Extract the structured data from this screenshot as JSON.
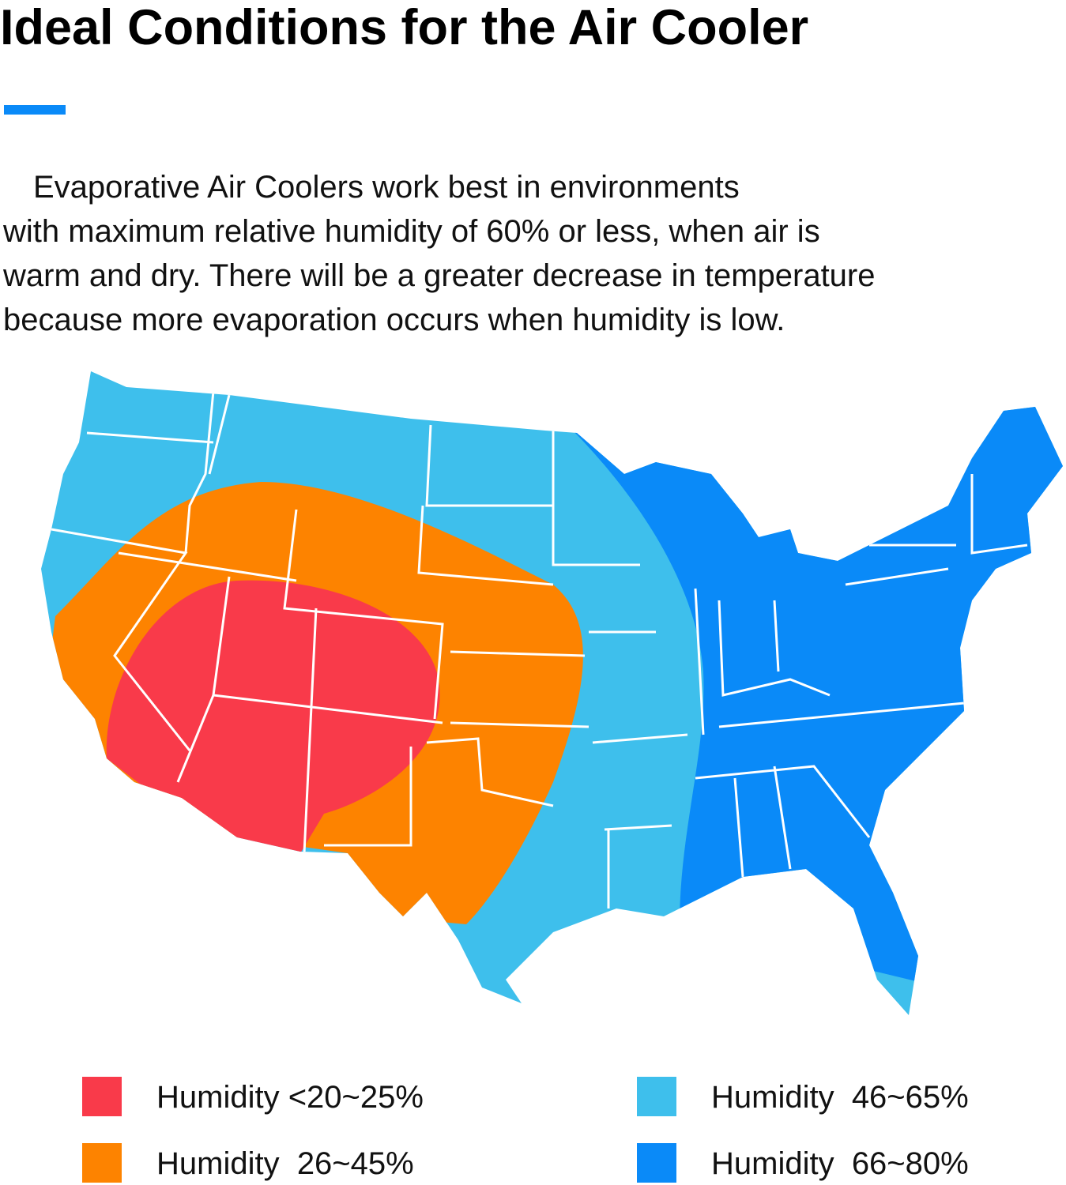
{
  "header": {
    "title": "Ideal Conditions for the Air Cooler"
  },
  "body": {
    "lines": [
      "Evaporative Air Coolers work best in environments",
      "with maximum relative humidity of 60% or less, when air is",
      "warm and dry. There will be a greater decrease in temperature",
      "because more evaporation occurs when humidity is low."
    ]
  },
  "legend": {
    "items": [
      {
        "label": "Humidity <20~25%",
        "color": "#f93a4a"
      },
      {
        "label": "Humidity  26~45%",
        "color": "#fd8300"
      },
      {
        "label": "Humidity  46~65%",
        "color": "#3ebfec"
      },
      {
        "label": "Humidity  66~80%",
        "color": "#0a8af8"
      }
    ]
  }
}
